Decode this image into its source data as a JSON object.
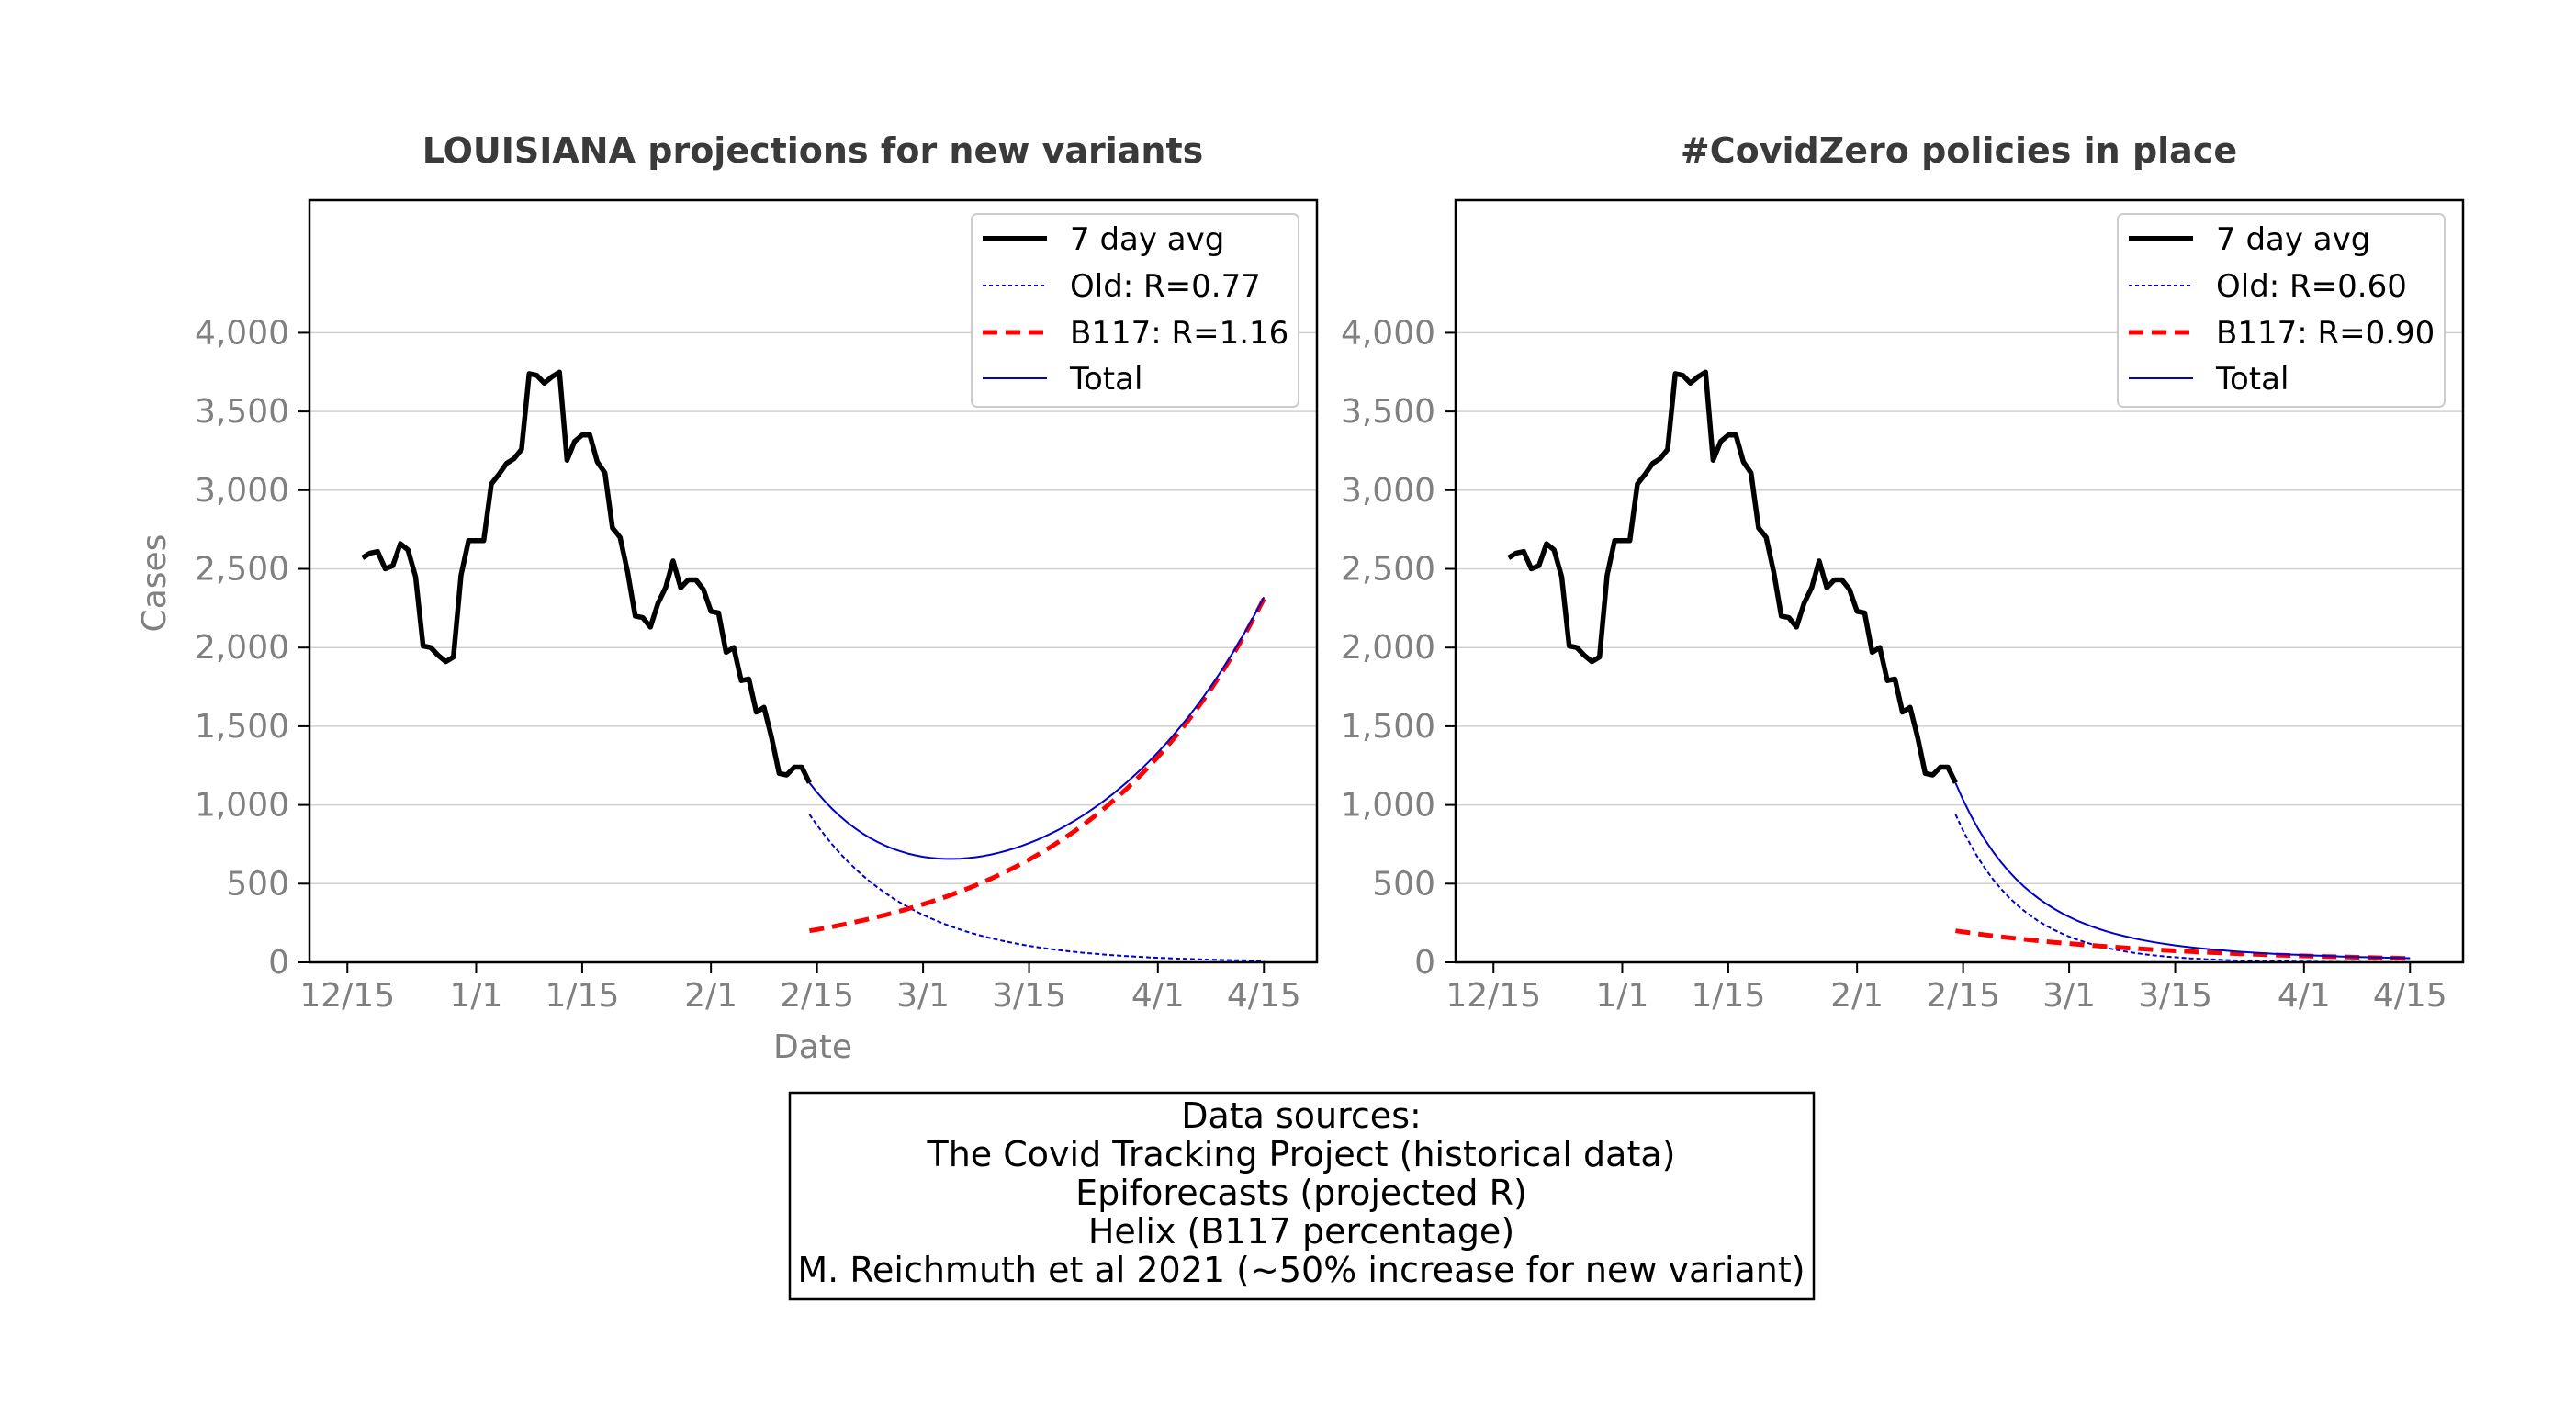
{
  "chart_data": [
    {
      "type": "line",
      "title": "LOUISIANA projections for new variants",
      "xlabel": "Date",
      "ylabel": "Cases",
      "x_ticks": [
        "12/15",
        "1/1",
        "1/15",
        "2/1",
        "2/15",
        "3/1",
        "3/15",
        "4/1",
        "4/15"
      ],
      "xlim": [
        "12/10",
        "4/22"
      ],
      "ylim": [
        0,
        4000
      ],
      "y_ticks": [
        "0",
        "500",
        "1,000",
        "1,500",
        "2,000",
        "2,500",
        "3,000",
        "3,500",
        "4,000"
      ],
      "grid": "horizontal",
      "legend_position": "top-right",
      "legend": [
        "7 day avg",
        "Old: R=0.77",
        "B117: R=1.16",
        "Total"
      ],
      "series": [
        {
          "name": "7 day avg",
          "color": "#000000",
          "style": "solid-thick",
          "points": [
            [
              "12/17",
              2570
            ],
            [
              "12/18",
              2600
            ],
            [
              "12/19",
              2610
            ],
            [
              "12/20",
              2500
            ],
            [
              "12/21",
              2520
            ],
            [
              "12/22",
              2660
            ],
            [
              "12/23",
              2620
            ],
            [
              "12/24",
              2450
            ],
            [
              "12/25",
              2010
            ],
            [
              "12/26",
              2000
            ],
            [
              "12/27",
              1950
            ],
            [
              "12/28",
              1910
            ],
            [
              "12/29",
              1940
            ],
            [
              "12/30",
              2460
            ],
            [
              "12/31",
              2680
            ],
            [
              "1/1",
              2680
            ],
            [
              "1/2",
              2680
            ],
            [
              "1/3",
              3040
            ],
            [
              "1/4",
              3100
            ],
            [
              "1/5",
              3170
            ],
            [
              "1/6",
              3200
            ],
            [
              "1/7",
              3260
            ],
            [
              "1/8",
              3740
            ],
            [
              "1/9",
              3730
            ],
            [
              "1/10",
              3680
            ],
            [
              "1/11",
              3720
            ],
            [
              "1/12",
              3750
            ],
            [
              "1/13",
              3190
            ],
            [
              "1/14",
              3310
            ],
            [
              "1/15",
              3350
            ],
            [
              "1/16",
              3350
            ],
            [
              "1/17",
              3180
            ],
            [
              "1/18",
              3110
            ],
            [
              "1/19",
              2760
            ],
            [
              "1/20",
              2700
            ],
            [
              "1/21",
              2480
            ],
            [
              "1/22",
              2200
            ],
            [
              "1/23",
              2190
            ],
            [
              "1/24",
              2130
            ],
            [
              "1/25",
              2280
            ],
            [
              "1/26",
              2380
            ],
            [
              "1/27",
              2550
            ],
            [
              "1/28",
              2380
            ],
            [
              "1/29",
              2430
            ],
            [
              "1/30",
              2430
            ],
            [
              "1/31",
              2370
            ],
            [
              "2/1",
              2230
            ],
            [
              "2/2",
              2220
            ],
            [
              "2/3",
              1970
            ],
            [
              "2/4",
              2000
            ],
            [
              "2/5",
              1790
            ],
            [
              "2/6",
              1800
            ],
            [
              "2/7",
              1590
            ],
            [
              "2/8",
              1620
            ],
            [
              "2/9",
              1430
            ],
            [
              "2/10",
              1200
            ],
            [
              "2/11",
              1190
            ],
            [
              "2/12",
              1240
            ],
            [
              "2/13",
              1240
            ],
            [
              "2/14",
              1140
            ]
          ]
        },
        {
          "name": "Old: R=0.77",
          "color": "#0000cc",
          "style": "dotted",
          "x_start": "2/14",
          "x_end": "4/15",
          "y_start": 940,
          "y_end": 10,
          "shape": "exp-decay"
        },
        {
          "name": "B117: R=1.16",
          "color": "#ff0000",
          "style": "dashed",
          "x_start": "2/14",
          "x_end": "4/15",
          "y_start": 200,
          "y_end": 2310,
          "shape": "exp-growth"
        },
        {
          "name": "Total",
          "color": "#0000cc",
          "style": "solid-thin",
          "x_start": "2/14",
          "x_end": "4/15",
          "y_start": 1140,
          "y_min": 680,
          "y_min_at": "3/3",
          "y_end": 2320,
          "shape": "sum"
        }
      ]
    },
    {
      "type": "line",
      "title": "#CovidZero policies in place",
      "xlabel": "",
      "ylabel": "",
      "x_ticks": [
        "12/15",
        "1/1",
        "1/15",
        "2/1",
        "2/15",
        "3/1",
        "3/15",
        "4/1",
        "4/15"
      ],
      "xlim": [
        "12/10",
        "4/22"
      ],
      "ylim": [
        0,
        4000
      ],
      "y_ticks": [
        "0",
        "500",
        "1,000",
        "1,500",
        "2,000",
        "2,500",
        "3,000",
        "3,500",
        "4,000"
      ],
      "grid": "horizontal",
      "legend_position": "top-right",
      "legend": [
        "7 day avg",
        "Old: R=0.60",
        "B117: R=0.90",
        "Total"
      ],
      "series": [
        {
          "name": "7 day avg",
          "color": "#000000",
          "style": "solid-thick",
          "same_as_left_chart": true
        },
        {
          "name": "Old: R=0.60",
          "color": "#0000cc",
          "style": "dotted",
          "x_start": "2/14",
          "x_end": "4/15",
          "y_start": 940,
          "y_end": 0,
          "shape": "exp-decay"
        },
        {
          "name": "B117: R=0.90",
          "color": "#ff0000",
          "style": "dashed",
          "x_start": "2/14",
          "x_end": "4/15",
          "y_start": 200,
          "y_end": 25,
          "shape": "exp-decay"
        },
        {
          "name": "Total",
          "color": "#0000cc",
          "style": "solid-thin",
          "x_start": "2/14",
          "x_end": "4/15",
          "y_start": 1140,
          "y_end": 30,
          "shape": "sum"
        }
      ]
    }
  ],
  "sources": {
    "lines": [
      "Data sources:",
      "The Covid Tracking Project (historical data)",
      "Epiforecasts (projected R)",
      "Helix (B117 percentage)",
      "M. Reichmuth et al 2021 (~50% increase for new variant)"
    ]
  }
}
